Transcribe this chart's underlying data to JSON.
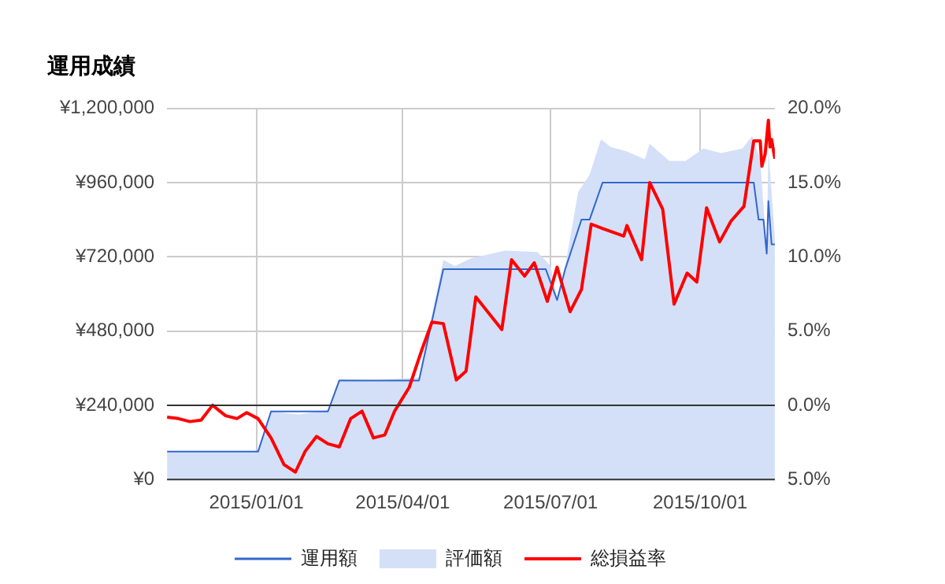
{
  "chart_data": {
    "type": "line",
    "title": "運用成績",
    "legend": "bottom",
    "grid": true,
    "xlim": [
      "2014-11-07",
      "2015-11-16"
    ],
    "xticks": [
      {
        "value": "2015-01-01",
        "label": "2015/01/01"
      },
      {
        "value": "2015-04-01",
        "label": "2015/04/01"
      },
      {
        "value": "2015-07-01",
        "label": "2015/07/01"
      },
      {
        "value": "2015-10-01",
        "label": "2015/10/01"
      }
    ],
    "ylim": [
      0,
      1200000
    ],
    "yticks": [
      {
        "value": 0,
        "label": "¥0"
      },
      {
        "value": 240000,
        "label": "¥240,000"
      },
      {
        "value": 480000,
        "label": "¥480,000"
      },
      {
        "value": 720000,
        "label": "¥720,000"
      },
      {
        "value": 960000,
        "label": "¥960,000"
      },
      {
        "value": 1200000,
        "label": "¥1,200,000"
      }
    ],
    "y2lim": [
      -5,
      20
    ],
    "y2ticks": [
      {
        "value": -5,
        "label": "5.0%"
      },
      {
        "value": 0,
        "label": "0.0%"
      },
      {
        "value": 5,
        "label": "5.0%"
      },
      {
        "value": 10,
        "label": "10.0%"
      },
      {
        "value": 15,
        "label": "15.0%"
      },
      {
        "value": 20,
        "label": "20.0%"
      }
    ],
    "ref_lines": [
      {
        "axis": "y2",
        "value": 0,
        "color": "#333333"
      }
    ],
    "series": [
      {
        "name": "運用額",
        "type": "line",
        "color": "#3366cc",
        "x": [
          "2014-11-07",
          "2015-01-02",
          "2015-01-10",
          "2015-02-14",
          "2015-02-21",
          "2015-04-11",
          "2015-04-26",
          "2015-06-28",
          "2015-07-05",
          "2015-07-10",
          "2015-07-20",
          "2015-07-25",
          "2015-08-02",
          "2015-11-03",
          "2015-11-06",
          "2015-11-09",
          "2015-11-11",
          "2015-11-12",
          "2015-11-14",
          "2015-11-16"
        ],
        "values": [
          90000,
          90000,
          220000,
          220000,
          320000,
          320000,
          680000,
          680000,
          580000,
          680000,
          840000,
          840000,
          960000,
          960000,
          840000,
          840000,
          730000,
          900000,
          760000,
          760000
        ]
      },
      {
        "name": "評価額",
        "type": "area",
        "color": "#d3e0f8",
        "x": [
          "2014-11-07",
          "2015-01-02",
          "2015-01-10",
          "2015-01-27",
          "2015-02-14",
          "2015-02-21",
          "2015-03-14",
          "2015-04-11",
          "2015-04-26",
          "2015-05-03",
          "2015-05-13",
          "2015-06-03",
          "2015-06-23",
          "2015-07-01",
          "2015-07-05",
          "2015-07-10",
          "2015-07-18",
          "2015-07-25",
          "2015-08-01",
          "2015-08-07",
          "2015-08-17",
          "2015-08-28",
          "2015-08-31",
          "2015-09-12",
          "2015-09-22",
          "2015-10-03",
          "2015-10-14",
          "2015-10-27",
          "2015-11-02",
          "2015-11-07",
          "2015-11-11",
          "2015-11-12",
          "2015-11-16"
        ],
        "values": [
          90000,
          90000,
          220000,
          210000,
          225000,
          325000,
          320000,
          330000,
          710000,
          690000,
          715000,
          740000,
          735000,
          690000,
          585000,
          690000,
          930000,
          985000,
          1100000,
          1075000,
          1060000,
          1035000,
          1085000,
          1030000,
          1030000,
          1070000,
          1055000,
          1070000,
          1110000,
          1035000,
          730000,
          1070000,
          785000
        ]
      },
      {
        "name": "総損益率",
        "type": "line",
        "axis": "y2",
        "color": "#ff0000",
        "x": [
          "2014-11-07",
          "2014-11-14",
          "2014-11-21",
          "2014-11-28",
          "2014-12-05",
          "2014-12-13",
          "2014-12-20",
          "2014-12-26",
          "2015-01-02",
          "2015-01-10",
          "2015-01-18",
          "2015-01-25",
          "2015-01-31",
          "2015-02-07",
          "2015-02-14",
          "2015-02-21",
          "2015-02-28",
          "2015-03-07",
          "2015-03-14",
          "2015-03-21",
          "2015-03-27",
          "2015-04-05",
          "2015-04-13",
          "2015-04-19",
          "2015-04-26",
          "2015-05-04",
          "2015-05-10",
          "2015-05-16",
          "2015-06-01",
          "2015-06-07",
          "2015-06-15",
          "2015-06-21",
          "2015-06-29",
          "2015-07-05",
          "2015-07-13",
          "2015-07-20",
          "2015-07-26",
          "2015-08-02",
          "2015-08-15",
          "2015-08-17",
          "2015-08-26",
          "2015-08-31",
          "2015-09-08",
          "2015-09-15",
          "2015-09-23",
          "2015-09-29",
          "2015-10-05",
          "2015-10-13",
          "2015-10-20",
          "2015-10-28",
          "2015-11-03",
          "2015-11-07",
          "2015-11-08",
          "2015-11-10",
          "2015-11-12",
          "2015-11-13",
          "2015-11-14",
          "2015-11-16"
        ],
        "values": [
          -0.8,
          -0.9,
          -1.1,
          -1.0,
          0.0,
          -0.7,
          -0.9,
          -0.5,
          -0.9,
          -2.2,
          -4.0,
          -4.5,
          -3.1,
          -2.1,
          -2.6,
          -2.8,
          -0.9,
          -0.4,
          -2.2,
          -2.0,
          -0.4,
          1.2,
          3.8,
          5.6,
          5.5,
          1.7,
          2.3,
          7.3,
          5.1,
          9.8,
          8.7,
          9.6,
          7.0,
          9.3,
          6.3,
          7.8,
          12.2,
          11.9,
          11.4,
          12.1,
          9.8,
          15.0,
          13.2,
          6.8,
          8.9,
          8.3,
          13.3,
          11.0,
          12.4,
          13.4,
          17.8,
          17.8,
          16.1,
          16.9,
          19.2,
          17.4,
          17.9,
          16.6
        ]
      }
    ]
  }
}
